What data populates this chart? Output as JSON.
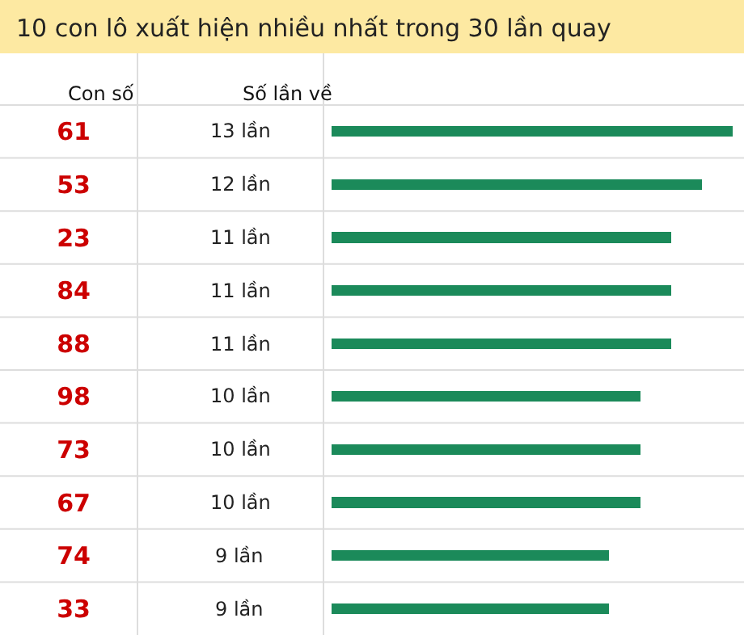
{
  "chart_data": {
    "type": "bar",
    "orientation": "horizontal",
    "title": "10 con lô xuất hiện nhiều nhất trong 30 lần quay",
    "ylabel": "Con số",
    "annotations": [
      "Số lần về"
    ],
    "categories": [
      "61",
      "53",
      "23",
      "84",
      "88",
      "98",
      "73",
      "67",
      "74",
      "33"
    ],
    "values": [
      13,
      12,
      11,
      11,
      11,
      10,
      10,
      10,
      9,
      9
    ],
    "value_labels": [
      "13 lần",
      "12 lần",
      "11 lần",
      "11 lần",
      "11 lần",
      "10 lần",
      "10 lần",
      "10 lần",
      "9 lần",
      "9 lần"
    ],
    "color": "#1b8a5a",
    "xlim": [
      0,
      13
    ],
    "tick_labels": "y"
  }
}
